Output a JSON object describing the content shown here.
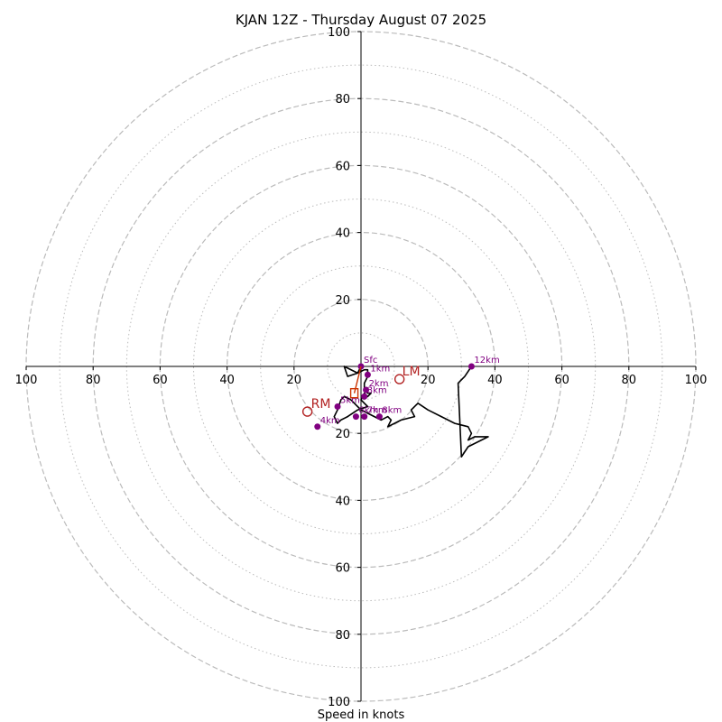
{
  "chart_data": {
    "type": "line",
    "title": "KJAN 12Z - Thursday August 07 2025",
    "xlabel": "Speed in knots",
    "ylabel": "",
    "xlim": [
      -100,
      100
    ],
    "ylim": [
      -100,
      100
    ],
    "ring_values_major": [
      20,
      40,
      60,
      80,
      100
    ],
    "ring_values_minor": [
      10,
      30,
      50,
      70,
      90
    ],
    "tick_labels": [
      "100",
      "80",
      "60",
      "40",
      "20",
      "20",
      "40",
      "60",
      "80",
      "100"
    ],
    "tick_values": [
      -100,
      -80,
      -60,
      -40,
      -20,
      20,
      40,
      60,
      80,
      100
    ],
    "series": [
      {
        "x": [
          0,
          -1,
          -5,
          -4,
          -1,
          1,
          2,
          2,
          1,
          1,
          2,
          3,
          2,
          2,
          1,
          0,
          1,
          0,
          2,
          -1,
          -4,
          -6,
          -7,
          -8,
          -7,
          -6,
          -5,
          -3,
          -2,
          -1,
          0,
          2,
          4,
          6,
          8,
          9,
          8,
          10,
          12,
          16,
          15,
          17,
          20,
          24,
          28,
          32,
          33,
          32,
          34,
          38,
          32,
          30,
          29,
          31,
          33
        ],
        "y": [
          0,
          2,
          0,
          3,
          2,
          1,
          1,
          3,
          5,
          7,
          8,
          8,
          9,
          9,
          8,
          10,
          11,
          10,
          12,
          13,
          15,
          16,
          17,
          15,
          13,
          10,
          9,
          10,
          11,
          12,
          13,
          14,
          15,
          16,
          15,
          16,
          18,
          17,
          16,
          15,
          13,
          11,
          13,
          15,
          17,
          18,
          20,
          22,
          21,
          21,
          24,
          27,
          5,
          3,
          0
        ]
      }
    ],
    "height_markers": [
      {
        "label": "Sfc",
        "x": 0,
        "y": 0
      },
      {
        "label": "1km",
        "x": 2,
        "y": 2.5
      },
      {
        "label": "2km",
        "x": 1.5,
        "y": 7
      },
      {
        "label": "3km",
        "x": 1,
        "y": 9
      },
      {
        "label": "4km",
        "x": -13,
        "y": 18
      },
      {
        "label": "5km",
        "x": -7,
        "y": 12
      },
      {
        "label": "6km",
        "x": -1.5,
        "y": 15
      },
      {
        "label": "7km",
        "x": 1,
        "y": 15
      },
      {
        "label": "8km",
        "x": 5.5,
        "y": 15
      },
      {
        "label": "12km",
        "x": 33,
        "y": 0
      }
    ],
    "storm_motion": [
      {
        "label": "RM",
        "x": -16,
        "y": 13.5
      },
      {
        "label": "LM",
        "x": 11.5,
        "y": 3.8
      }
    ],
    "mean_wind_marker": {
      "label": "",
      "x": -2,
      "y": 8
    },
    "colors": {
      "hodograph": "#000000",
      "height_markers": "#800080",
      "storm_motion": "#b22222",
      "mean_wind": "#cc3300",
      "grid": "#bbbbbb"
    }
  }
}
